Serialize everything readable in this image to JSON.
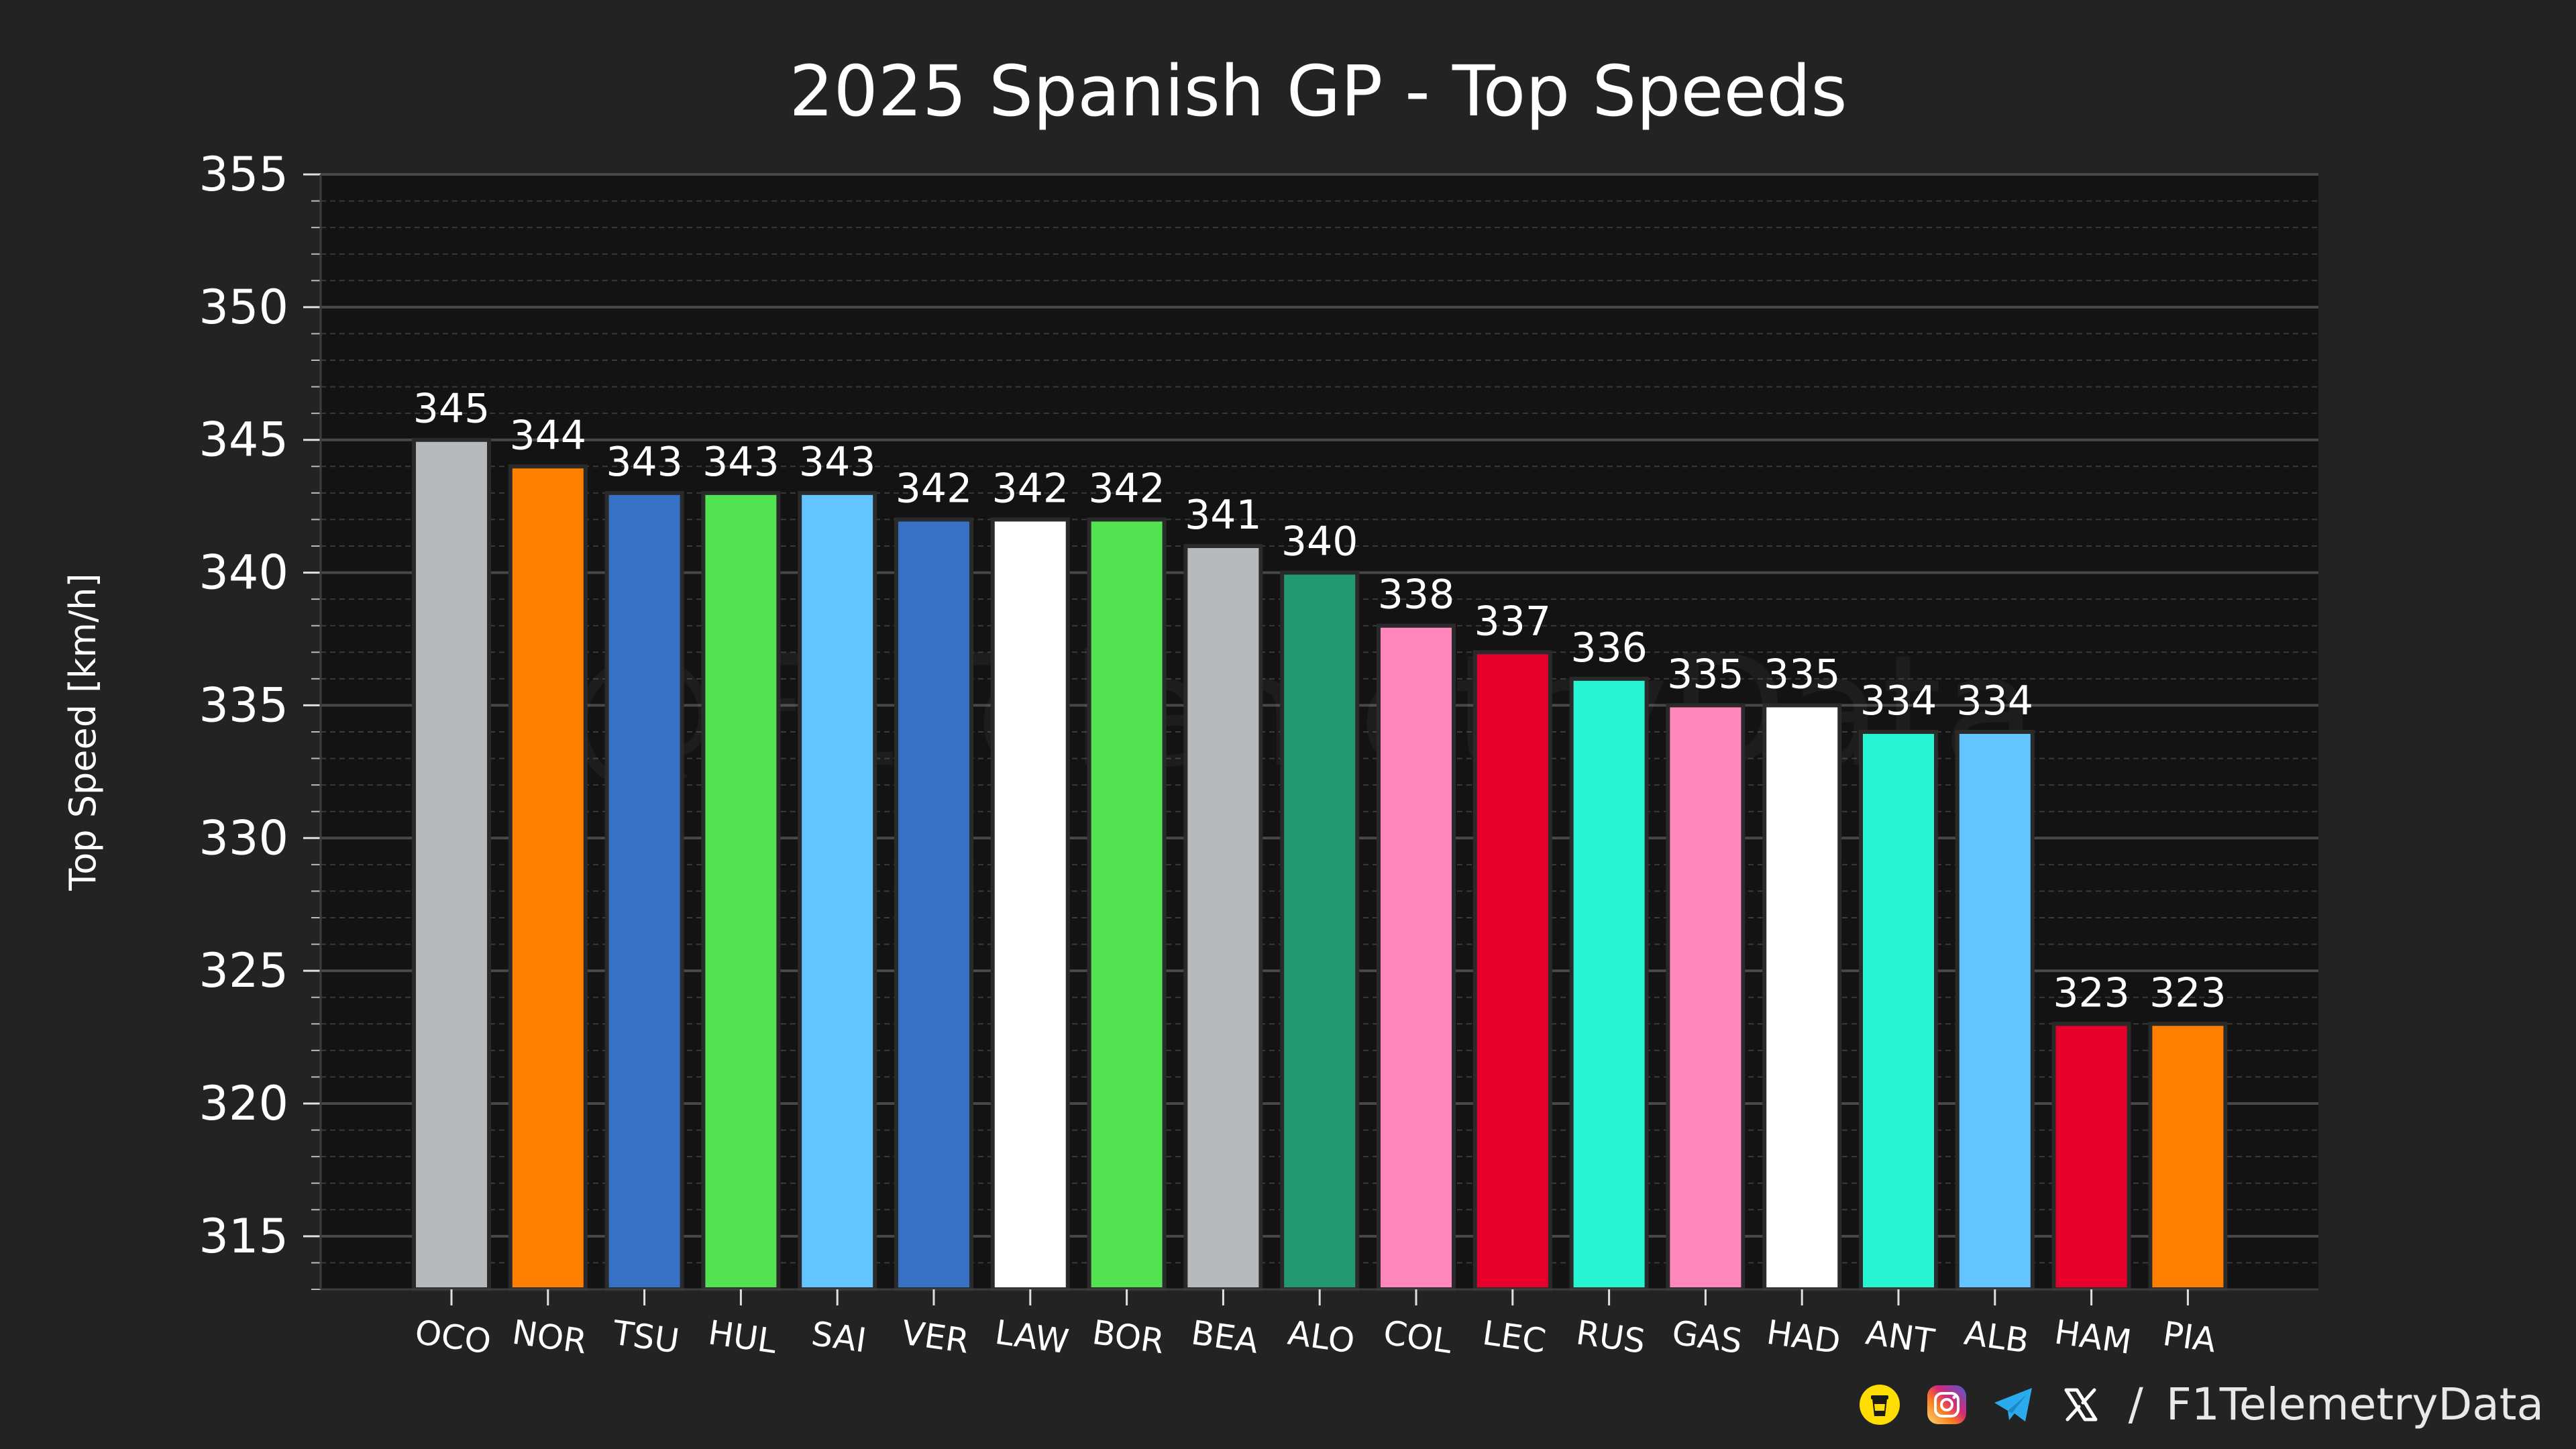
{
  "chart_data": {
    "type": "bar",
    "title": "2025 Spanish GP - Top Speeds",
    "xlabel": "",
    "ylabel": "Top Speed [km/h]",
    "ylim": [
      313,
      355
    ],
    "yticks": [
      315,
      320,
      325,
      330,
      335,
      340,
      345,
      350,
      355
    ],
    "grid": true,
    "watermark": "@F1TelemetryData",
    "categories": [
      "OCO",
      "NOR",
      "TSU",
      "HUL",
      "SAI",
      "VER",
      "LAW",
      "BOR",
      "BEA",
      "ALO",
      "COL",
      "LEC",
      "RUS",
      "GAS",
      "HAD",
      "ANT",
      "ALB",
      "HAM",
      "PIA"
    ],
    "values": [
      345,
      344,
      343,
      343,
      343,
      342,
      342,
      342,
      341,
      340,
      338,
      337,
      336,
      335,
      335,
      334,
      334,
      323,
      323
    ],
    "colors": [
      "#B6BABD",
      "#FF8000",
      "#3671C6",
      "#52E252",
      "#64C4FF",
      "#3671C6",
      "#FFFFFF",
      "#52E252",
      "#B6BABD",
      "#229971",
      "#FF87BC",
      "#E8002D",
      "#27F4D2",
      "#FF87BC",
      "#FFFFFF",
      "#27F4D2",
      "#64C4FF",
      "#E8002D",
      "#FF8000"
    ]
  },
  "footer": {
    "separator": "/",
    "handle": "F1TelemetryData",
    "icons": [
      "buymeacoffee-icon",
      "instagram-icon",
      "telegram-icon",
      "x-icon"
    ]
  }
}
